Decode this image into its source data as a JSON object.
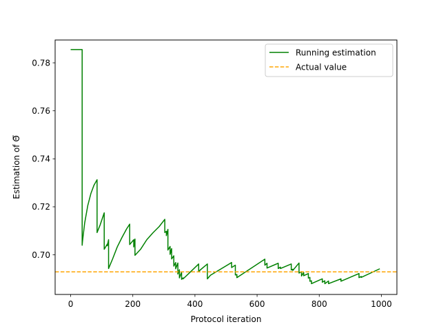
{
  "chart_data": {
    "type": "line",
    "xlabel": "Protocol iteration",
    "ylabel": "Estimation of Θ̅",
    "xlim": [
      -50,
      1050
    ],
    "ylim": [
      0.6835,
      0.7895
    ],
    "xticks": [
      0,
      200,
      400,
      600,
      800,
      1000
    ],
    "yticks": [
      0.7,
      0.72,
      0.74,
      0.76,
      0.78
    ],
    "xtick_labels": [
      "0",
      "200",
      "400",
      "600",
      "800",
      "1000"
    ],
    "ytick_labels": [
      "0.70",
      "0.72",
      "0.74",
      "0.76",
      "0.78"
    ],
    "grid": false,
    "legend_position": "top-right",
    "series": [
      {
        "name": "Running estimation",
        "style": "solid",
        "color": "#008000",
        "x": [
          0,
          37,
          37,
          38,
          45,
          55,
          65,
          75,
          85,
          85,
          95,
          108,
          108,
          118,
          118,
          122,
          122,
          135,
          150,
          165,
          180,
          190,
          190,
          203,
          203,
          207,
          207,
          225,
          245,
          265,
          285,
          303,
          303,
          308,
          308,
          313,
          313,
          320,
          320,
          325,
          325,
          332,
          332,
          338,
          338,
          345,
          345,
          350,
          350,
          357,
          357,
          362,
          362,
          380,
          412,
          412,
          417,
          440,
          440,
          450,
          518,
          518,
          530,
          530,
          535,
          535,
          625,
          625,
          632,
          632,
          668,
          668,
          675,
          675,
          710,
          710,
          715,
          715,
          735,
          735,
          743,
          743,
          750,
          750,
          765,
          765,
          770,
          770,
          775,
          775,
          810,
          810,
          818,
          818,
          830,
          830,
          870,
          870,
          928,
          928,
          935,
          935,
          995
        ],
        "y": [
          0.7855,
          0.7855,
          0.704,
          0.7055,
          0.7132,
          0.7205,
          0.7255,
          0.729,
          0.7313,
          0.7093,
          0.7125,
          0.7175,
          0.7023,
          0.7045,
          0.7038,
          0.7063,
          0.6943,
          0.6983,
          0.7033,
          0.7072,
          0.7108,
          0.7128,
          0.7043,
          0.7063,
          0.7033,
          0.7066,
          0.6998,
          0.7023,
          0.7063,
          0.7092,
          0.7118,
          0.7148,
          0.7093,
          0.7098,
          0.708,
          0.7106,
          0.702,
          0.7035,
          0.7002,
          0.7026,
          0.6983,
          0.6996,
          0.6953,
          0.6968,
          0.6942,
          0.6966,
          0.692,
          0.6938,
          0.6904,
          0.6928,
          0.6898,
          0.6904,
          0.69,
          0.6922,
          0.6962,
          0.693,
          0.6937,
          0.6962,
          0.69,
          0.6915,
          0.6968,
          0.6947,
          0.6957,
          0.6916,
          0.6918,
          0.6905,
          0.6982,
          0.6957,
          0.6965,
          0.6945,
          0.6965,
          0.6943,
          0.6949,
          0.6943,
          0.6962,
          0.6937,
          0.694,
          0.6935,
          0.6966,
          0.6924,
          0.693,
          0.6912,
          0.6927,
          0.6913,
          0.6922,
          0.6903,
          0.6906,
          0.689,
          0.6892,
          0.688,
          0.69,
          0.6886,
          0.6892,
          0.688,
          0.6891,
          0.688,
          0.69,
          0.689,
          0.6922,
          0.6905,
          0.691,
          0.6906,
          0.6942
        ]
      },
      {
        "name": "Actual value",
        "style": "dashed",
        "color": "#FFA500",
        "x": [
          -50,
          1050
        ],
        "y": [
          0.6929,
          0.6929
        ]
      }
    ]
  }
}
